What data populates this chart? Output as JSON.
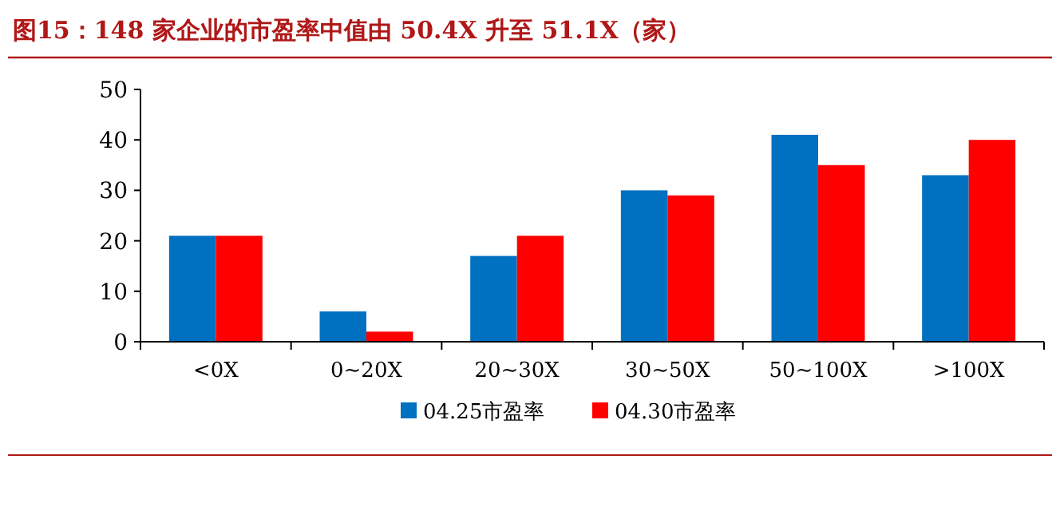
{
  "chart_data": {
    "type": "bar",
    "title": "图15：148 家企业的市盈率中值由 50.4X 升至 51.1X（家）",
    "categories": [
      "<0X",
      "0~20X",
      "20~30X",
      "30~50X",
      "50~100X",
      ">100X"
    ],
    "series": [
      {
        "name": "04.25市盈率",
        "color": "#0070c0",
        "values": [
          21,
          6,
          17,
          30,
          41,
          33
        ]
      },
      {
        "name": "04.30市盈率",
        "color": "#ff0000",
        "values": [
          21,
          2,
          21,
          29,
          35,
          40
        ]
      }
    ],
    "ylim": [
      0,
      50
    ],
    "yticks": [
      0,
      10,
      20,
      30,
      40,
      50
    ],
    "legend": "bottom"
  }
}
